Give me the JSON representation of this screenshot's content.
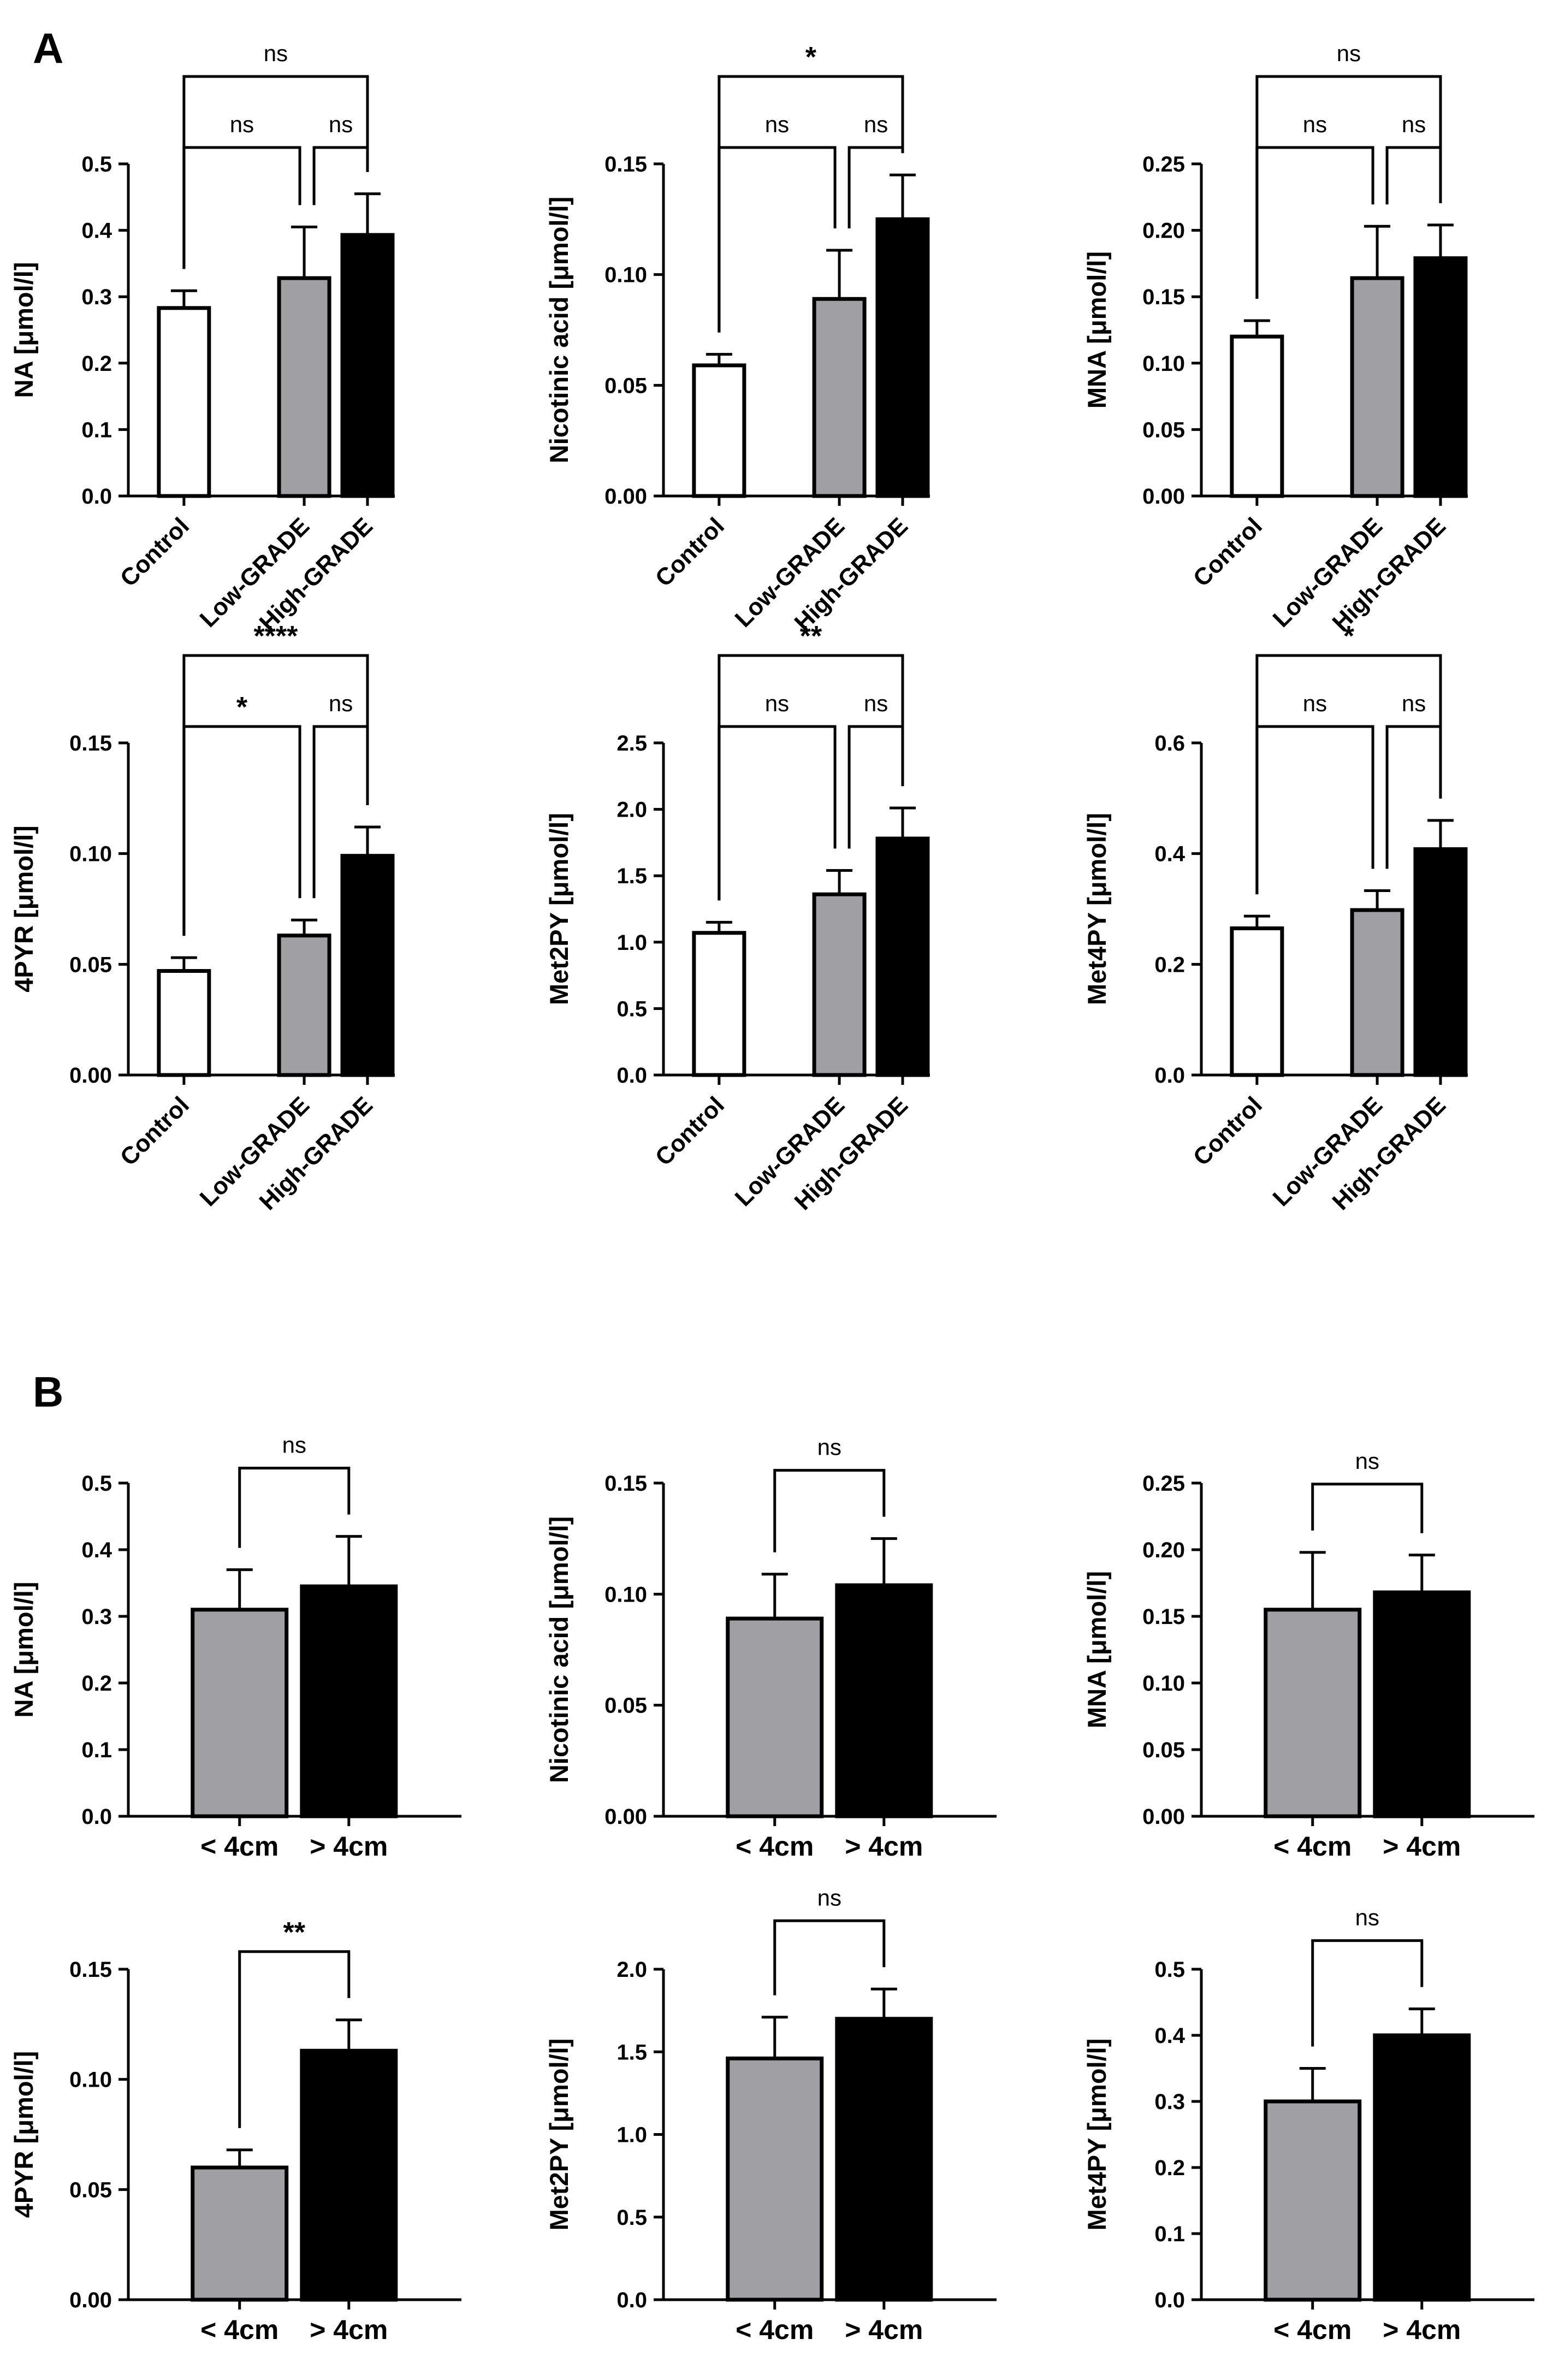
{
  "panels": [
    {
      "letter": "A"
    },
    {
      "letter": "B"
    }
  ],
  "chart_data": [
    {
      "type": "bar",
      "panel": "A",
      "ylabel": "NA [μmol/l]",
      "categories": [
        "Control",
        "Low-GRADE",
        "High-GRADE"
      ],
      "values": [
        0.283,
        0.328,
        0.393
      ],
      "errors": [
        0.026,
        0.077,
        0.062
      ],
      "fills": [
        "#ffffff",
        "#a0a0a4",
        "#000000"
      ],
      "ylim": [
        0,
        0.5
      ],
      "yticks": [
        "0.0",
        "0.1",
        "0.2",
        "0.3",
        "0.4",
        "0.5"
      ],
      "comparisons": [
        {
          "from": 0,
          "to": 1,
          "label": "ns"
        },
        {
          "from": 1,
          "to": 2,
          "label": "ns"
        },
        {
          "from": 0,
          "to": 2,
          "label": "ns"
        }
      ]
    },
    {
      "type": "bar",
      "panel": "A",
      "ylabel": "Nicotinic acid [μmol/l]",
      "categories": [
        "Control",
        "Low-GRADE",
        "High-GRADE"
      ],
      "values": [
        0.059,
        0.089,
        0.125
      ],
      "errors": [
        0.005,
        0.022,
        0.02
      ],
      "fills": [
        "#ffffff",
        "#a0a0a4",
        "#000000"
      ],
      "ylim": [
        0,
        0.15
      ],
      "yticks": [
        "0.00",
        "0.05",
        "0.10",
        "0.15"
      ],
      "comparisons": [
        {
          "from": 0,
          "to": 1,
          "label": "ns"
        },
        {
          "from": 1,
          "to": 2,
          "label": "ns"
        },
        {
          "from": 0,
          "to": 2,
          "label": "*"
        }
      ]
    },
    {
      "type": "bar",
      "panel": "A",
      "ylabel": "MNA [μmol/l]",
      "categories": [
        "Control",
        "Low-GRADE",
        "High-GRADE"
      ],
      "values": [
        0.12,
        0.164,
        0.179
      ],
      "errors": [
        0.012,
        0.039,
        0.025
      ],
      "fills": [
        "#ffffff",
        "#a0a0a4",
        "#000000"
      ],
      "ylim": [
        0,
        0.25
      ],
      "yticks": [
        "0.00",
        "0.05",
        "0.10",
        "0.15",
        "0.20",
        "0.25"
      ],
      "comparisons": [
        {
          "from": 0,
          "to": 1,
          "label": "ns"
        },
        {
          "from": 1,
          "to": 2,
          "label": "ns"
        },
        {
          "from": 0,
          "to": 2,
          "label": "ns"
        }
      ]
    },
    {
      "type": "bar",
      "panel": "A",
      "ylabel": "4PYR [μmol/l]",
      "categories": [
        "Control",
        "Low-GRADE",
        "High-GRADE"
      ],
      "values": [
        0.047,
        0.063,
        0.099
      ],
      "errors": [
        0.006,
        0.007,
        0.013
      ],
      "fills": [
        "#ffffff",
        "#a0a0a4",
        "#000000"
      ],
      "ylim": [
        0,
        0.15
      ],
      "yticks": [
        "0.00",
        "0.05",
        "0.10",
        "0.15"
      ],
      "comparisons": [
        {
          "from": 0,
          "to": 1,
          "label": "*"
        },
        {
          "from": 1,
          "to": 2,
          "label": "ns"
        },
        {
          "from": 0,
          "to": 2,
          "label": "****"
        }
      ]
    },
    {
      "type": "bar",
      "panel": "A",
      "ylabel": "Met2PY [μmol/l]",
      "categories": [
        "Control",
        "Low-GRADE",
        "High-GRADE"
      ],
      "values": [
        1.07,
        1.36,
        1.78
      ],
      "errors": [
        0.08,
        0.18,
        0.23
      ],
      "fills": [
        "#ffffff",
        "#a0a0a4",
        "#000000"
      ],
      "ylim": [
        0,
        2.5
      ],
      "yticks": [
        "0.0",
        "0.5",
        "1.0",
        "1.5",
        "2.0",
        "2.5"
      ],
      "comparisons": [
        {
          "from": 0,
          "to": 1,
          "label": "ns"
        },
        {
          "from": 1,
          "to": 2,
          "label": "ns"
        },
        {
          "from": 0,
          "to": 2,
          "label": "**"
        }
      ]
    },
    {
      "type": "bar",
      "panel": "A",
      "ylabel": "Met4PY [μmol/l]",
      "categories": [
        "Control",
        "Low-GRADE",
        "High-GRADE"
      ],
      "values": [
        0.265,
        0.298,
        0.408
      ],
      "errors": [
        0.022,
        0.035,
        0.052
      ],
      "fills": [
        "#ffffff",
        "#a0a0a4",
        "#000000"
      ],
      "ylim": [
        0,
        0.6
      ],
      "yticks": [
        "0.0",
        "0.2",
        "0.4",
        "0.6"
      ],
      "comparisons": [
        {
          "from": 0,
          "to": 1,
          "label": "ns"
        },
        {
          "from": 1,
          "to": 2,
          "label": "ns"
        },
        {
          "from": 0,
          "to": 2,
          "label": "*"
        }
      ]
    },
    {
      "type": "bar",
      "panel": "B",
      "ylabel": "NA [μmol/l]",
      "categories": [
        "< 4cm",
        "> 4cm"
      ],
      "values": [
        0.31,
        0.345
      ],
      "errors": [
        0.06,
        0.075
      ],
      "fills": [
        "#a0a0a4",
        "#000000"
      ],
      "ylim": [
        0,
        0.5
      ],
      "yticks": [
        "0.0",
        "0.1",
        "0.2",
        "0.3",
        "0.4",
        "0.5"
      ],
      "comparisons": [
        {
          "from": 0,
          "to": 1,
          "label": "ns"
        }
      ]
    },
    {
      "type": "bar",
      "panel": "B",
      "ylabel": "Nicotinic acid [μmol/l]",
      "categories": [
        "< 4cm",
        "> 4cm"
      ],
      "values": [
        0.089,
        0.104
      ],
      "errors": [
        0.02,
        0.021
      ],
      "fills": [
        "#a0a0a4",
        "#000000"
      ],
      "ylim": [
        0,
        0.15
      ],
      "yticks": [
        "0.00",
        "0.05",
        "0.10",
        "0.15"
      ],
      "comparisons": [
        {
          "from": 0,
          "to": 1,
          "label": "ns"
        }
      ]
    },
    {
      "type": "bar",
      "panel": "B",
      "ylabel": "MNA [μmol/l]",
      "categories": [
        "< 4cm",
        "> 4cm"
      ],
      "values": [
        0.155,
        0.168
      ],
      "errors": [
        0.043,
        0.028
      ],
      "fills": [
        "#a0a0a4",
        "#000000"
      ],
      "ylim": [
        0,
        0.25
      ],
      "yticks": [
        "0.00",
        "0.05",
        "0.10",
        "0.15",
        "0.20",
        "0.25"
      ],
      "comparisons": [
        {
          "from": 0,
          "to": 1,
          "label": "ns"
        }
      ]
    },
    {
      "type": "bar",
      "panel": "B",
      "ylabel": "4PYR [μmol/l]",
      "categories": [
        "< 4cm",
        "> 4cm"
      ],
      "values": [
        0.06,
        0.113
      ],
      "errors": [
        0.008,
        0.014
      ],
      "fills": [
        "#a0a0a4",
        "#000000"
      ],
      "ylim": [
        0,
        0.15
      ],
      "yticks": [
        "0.00",
        "0.05",
        "0.10",
        "0.15"
      ],
      "comparisons": [
        {
          "from": 0,
          "to": 1,
          "label": "**"
        }
      ]
    },
    {
      "type": "bar",
      "panel": "B",
      "ylabel": "Met2PY [μmol/l]",
      "categories": [
        "< 4cm",
        "> 4cm"
      ],
      "values": [
        1.46,
        1.7
      ],
      "errors": [
        0.25,
        0.18
      ],
      "fills": [
        "#a0a0a4",
        "#000000"
      ],
      "ylim": [
        0,
        2.0
      ],
      "yticks": [
        "0.0",
        "0.5",
        "1.0",
        "1.5",
        "2.0"
      ],
      "comparisons": [
        {
          "from": 0,
          "to": 1,
          "label": "ns"
        }
      ]
    },
    {
      "type": "bar",
      "panel": "B",
      "ylabel": "Met4PY [μmol/l]",
      "categories": [
        "< 4cm",
        "> 4cm"
      ],
      "values": [
        0.3,
        0.4
      ],
      "errors": [
        0.05,
        0.04
      ],
      "fills": [
        "#a0a0a4",
        "#000000"
      ],
      "ylim": [
        0,
        0.5
      ],
      "yticks": [
        "0.0",
        "0.1",
        "0.2",
        "0.3",
        "0.4",
        "0.5"
      ],
      "comparisons": [
        {
          "from": 0,
          "to": 1,
          "label": "ns"
        }
      ]
    }
  ]
}
